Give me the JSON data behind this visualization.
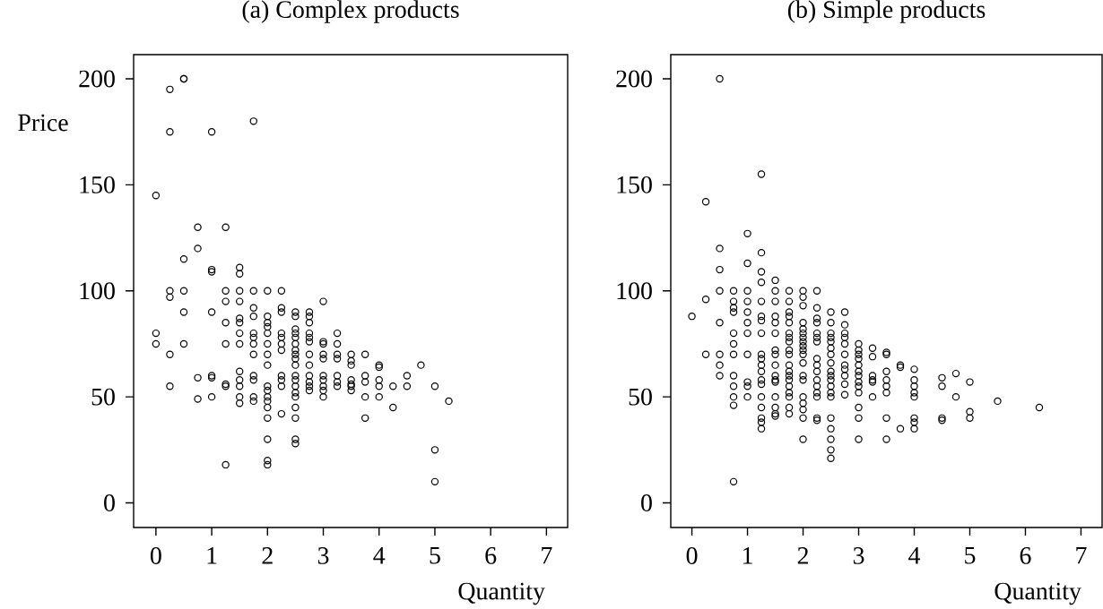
{
  "chart_data": [
    {
      "type": "scatter",
      "title": "(a) Complex products",
      "xlabel": "Quantity",
      "ylabel": "Price",
      "color": "#000000",
      "marker": "circle",
      "xlim": [
        -0.4,
        7.38
      ],
      "ylim": [
        -11.6,
        211.4
      ],
      "xticks": [
        0,
        1,
        2,
        3,
        4,
        5,
        6,
        7
      ],
      "yticks": [
        0,
        50,
        100,
        150,
        200
      ],
      "x": [
        0,
        0,
        0,
        0.25,
        0.25,
        0.25,
        0.25,
        0.25,
        0.25,
        0.5,
        0.5,
        0.5,
        0.5,
        0.5,
        0.5,
        0.75,
        0.75,
        0.75,
        0.75,
        1,
        1,
        1,
        1,
        1,
        1,
        1,
        1.25,
        1.25,
        1.25,
        1.25,
        1.25,
        1.25,
        1.25,
        1.25,
        1.5,
        1.5,
        1.5,
        1.5,
        1.5,
        1.5,
        1.5,
        1.5,
        1.5,
        1.5,
        1.5,
        1.5,
        1.5,
        1.75,
        1.75,
        1.75,
        1.75,
        1.75,
        1.75,
        1.75,
        1.75,
        1.75,
        1.75,
        1.75,
        1.75,
        2,
        2,
        2,
        2,
        2,
        2,
        2,
        2,
        2,
        2,
        2,
        2,
        2,
        2,
        2,
        2,
        2,
        2.25,
        2.25,
        2.25,
        2.25,
        2.25,
        2.25,
        2.25,
        2.25,
        2.25,
        2.25,
        2.25,
        2.5,
        2.5,
        2.5,
        2.5,
        2.5,
        2.5,
        2.5,
        2.5,
        2.5,
        2.5,
        2.5,
        2.5,
        2.5,
        2.5,
        2.5,
        2.5,
        2.5,
        2.5,
        2.5,
        2.75,
        2.75,
        2.75,
        2.75,
        2.75,
        2.75,
        2.75,
        2.75,
        2.75,
        2.75,
        2.75,
        2.75,
        3,
        3,
        3,
        3,
        3,
        3,
        3,
        3,
        3,
        3,
        3.25,
        3.25,
        3.25,
        3.25,
        3.25,
        3.25,
        3.25,
        3.5,
        3.5,
        3.5,
        3.5,
        3.5,
        3.5,
        3.5,
        3.75,
        3.75,
        3.75,
        3.75,
        3.75,
        4,
        4,
        4,
        4,
        4,
        4.25,
        4.25,
        4.5,
        4.5,
        4.75,
        5,
        5,
        5,
        5.25
      ],
      "values": [
        145,
        80,
        75,
        195,
        175,
        100,
        97,
        70,
        55,
        200,
        200,
        115,
        100,
        90,
        75,
        130,
        120,
        59,
        49,
        175,
        110,
        109,
        90,
        60,
        59,
        50,
        130,
        100,
        95,
        85,
        75,
        56,
        55,
        18,
        111,
        108,
        100,
        95,
        87,
        85,
        80,
        75,
        62,
        58,
        55,
        50,
        47,
        180,
        100,
        92,
        88,
        80,
        78,
        75,
        70,
        60,
        58,
        50,
        48,
        100,
        88,
        85,
        83,
        80,
        75,
        70,
        65,
        55,
        53,
        50,
        48,
        45,
        40,
        30,
        20,
        18,
        100,
        92,
        90,
        80,
        78,
        75,
        72,
        60,
        58,
        55,
        42,
        90,
        88,
        82,
        80,
        78,
        75,
        72,
        70,
        68,
        65,
        60,
        58,
        55,
        52,
        50,
        45,
        40,
        30,
        28,
        90,
        88,
        85,
        80,
        78,
        76,
        70,
        65,
        60,
        57,
        55,
        53,
        95,
        76,
        75,
        70,
        68,
        60,
        58,
        55,
        53,
        50,
        80,
        75,
        70,
        68,
        60,
        57,
        55,
        70,
        67,
        65,
        58,
        56,
        55,
        53,
        70,
        60,
        57,
        50,
        40,
        65,
        64,
        58,
        55,
        50,
        55,
        45,
        60,
        55,
        65,
        55,
        25,
        10,
        48
      ]
    },
    {
      "type": "scatter",
      "title": "(b) Simple products",
      "xlabel": "Quantity",
      "color": "#000000",
      "marker": "circle",
      "xlim": [
        -0.38,
        7.38
      ],
      "ylim": [
        -11.6,
        211.4
      ],
      "xticks": [
        0,
        1,
        2,
        3,
        4,
        5,
        6,
        7
      ],
      "yticks": [
        0,
        50,
        100,
        150,
        200
      ],
      "x": [
        0,
        0.25,
        0.25,
        0.25,
        0.5,
        0.5,
        0.5,
        0.5,
        0.5,
        0.5,
        0.5,
        0.5,
        0.75,
        0.75,
        0.75,
        0.75,
        0.75,
        0.75,
        0.75,
        0.75,
        0.75,
        0.75,
        0.75,
        0.75,
        1,
        1,
        1,
        1,
        1,
        1,
        1,
        1,
        1,
        1,
        1,
        1.25,
        1.25,
        1.25,
        1.25,
        1.25,
        1.25,
        1.25,
        1.25,
        1.25,
        1.25,
        1.25,
        1.25,
        1.25,
        1.25,
        1.25,
        1.25,
        1.25,
        1.25,
        1.25,
        1.5,
        1.5,
        1.5,
        1.5,
        1.5,
        1.5,
        1.5,
        1.5,
        1.5,
        1.5,
        1.5,
        1.5,
        1.5,
        1.5,
        1.5,
        1.5,
        1.75,
        1.75,
        1.75,
        1.75,
        1.75,
        1.75,
        1.75,
        1.75,
        1.75,
        1.75,
        1.75,
        1.75,
        1.75,
        1.75,
        1.75,
        1.75,
        1.75,
        1.75,
        1.75,
        2,
        2,
        2,
        2,
        2,
        2,
        2,
        2,
        2,
        2,
        2,
        2,
        2,
        2,
        2,
        2,
        2,
        2,
        2,
        2.25,
        2.25,
        2.25,
        2.25,
        2.25,
        2.25,
        2.25,
        2.25,
        2.25,
        2.25,
        2.25,
        2.25,
        2.25,
        2.25,
        2.25,
        2.25,
        2.5,
        2.5,
        2.5,
        2.5,
        2.5,
        2.5,
        2.5,
        2.5,
        2.5,
        2.5,
        2.5,
        2.5,
        2.5,
        2.5,
        2.5,
        2.5,
        2.5,
        2.5,
        2.5,
        2.75,
        2.75,
        2.75,
        2.75,
        2.75,
        2.75,
        2.75,
        2.75,
        2.75,
        2.75,
        2.75,
        3,
        3,
        3,
        3,
        3,
        3,
        3,
        3,
        3,
        3,
        3,
        3,
        3,
        3.25,
        3.25,
        3.25,
        3.25,
        3.25,
        3.25,
        3.5,
        3.5,
        3.5,
        3.5,
        3.5,
        3.5,
        3.5,
        3.5,
        3.75,
        3.75,
        3.75,
        4,
        4,
        4,
        4,
        4,
        4,
        4,
        4,
        4.5,
        4.5,
        4.5,
        4.5,
        4.75,
        4.75,
        5,
        5,
        5,
        5.5,
        6.25
      ],
      "values": [
        88,
        142,
        96,
        70,
        200,
        120,
        110,
        100,
        85,
        70,
        65,
        60,
        100,
        95,
        92,
        90,
        80,
        75,
        70,
        60,
        55,
        50,
        46,
        10,
        127,
        113,
        100,
        95,
        90,
        85,
        80,
        70,
        57,
        55,
        50,
        155,
        118,
        109,
        104,
        95,
        88,
        86,
        80,
        70,
        68,
        65,
        62,
        58,
        56,
        50,
        45,
        40,
        38,
        35,
        105,
        100,
        95,
        88,
        85,
        80,
        72,
        70,
        65,
        60,
        58,
        57,
        50,
        45,
        42,
        41,
        100,
        95,
        90,
        88,
        85,
        80,
        78,
        76,
        72,
        70,
        65,
        62,
        60,
        58,
        55,
        52,
        50,
        45,
        42,
        100,
        97,
        93,
        85,
        82,
        80,
        78,
        76,
        74,
        72,
        70,
        66,
        60,
        58,
        50,
        47,
        44,
        40,
        30,
        100,
        92,
        87,
        85,
        80,
        78,
        76,
        68,
        65,
        62,
        58,
        55,
        52,
        50,
        40,
        39,
        90,
        85,
        80,
        78,
        76,
        73,
        70,
        66,
        62,
        60,
        58,
        55,
        52,
        50,
        40,
        35,
        30,
        25,
        21,
        90,
        84,
        80,
        78,
        75,
        70,
        65,
        63,
        60,
        56,
        51,
        75,
        72,
        70,
        68,
        65,
        62,
        60,
        57,
        55,
        52,
        45,
        40,
        30,
        73,
        69,
        60,
        58,
        57,
        50,
        71,
        70,
        62,
        58,
        55,
        52,
        40,
        30,
        65,
        64,
        35,
        63,
        58,
        55,
        52,
        50,
        40,
        38,
        35,
        59,
        55,
        40,
        39,
        61,
        50,
        57,
        43,
        40,
        48,
        45
      ]
    }
  ]
}
